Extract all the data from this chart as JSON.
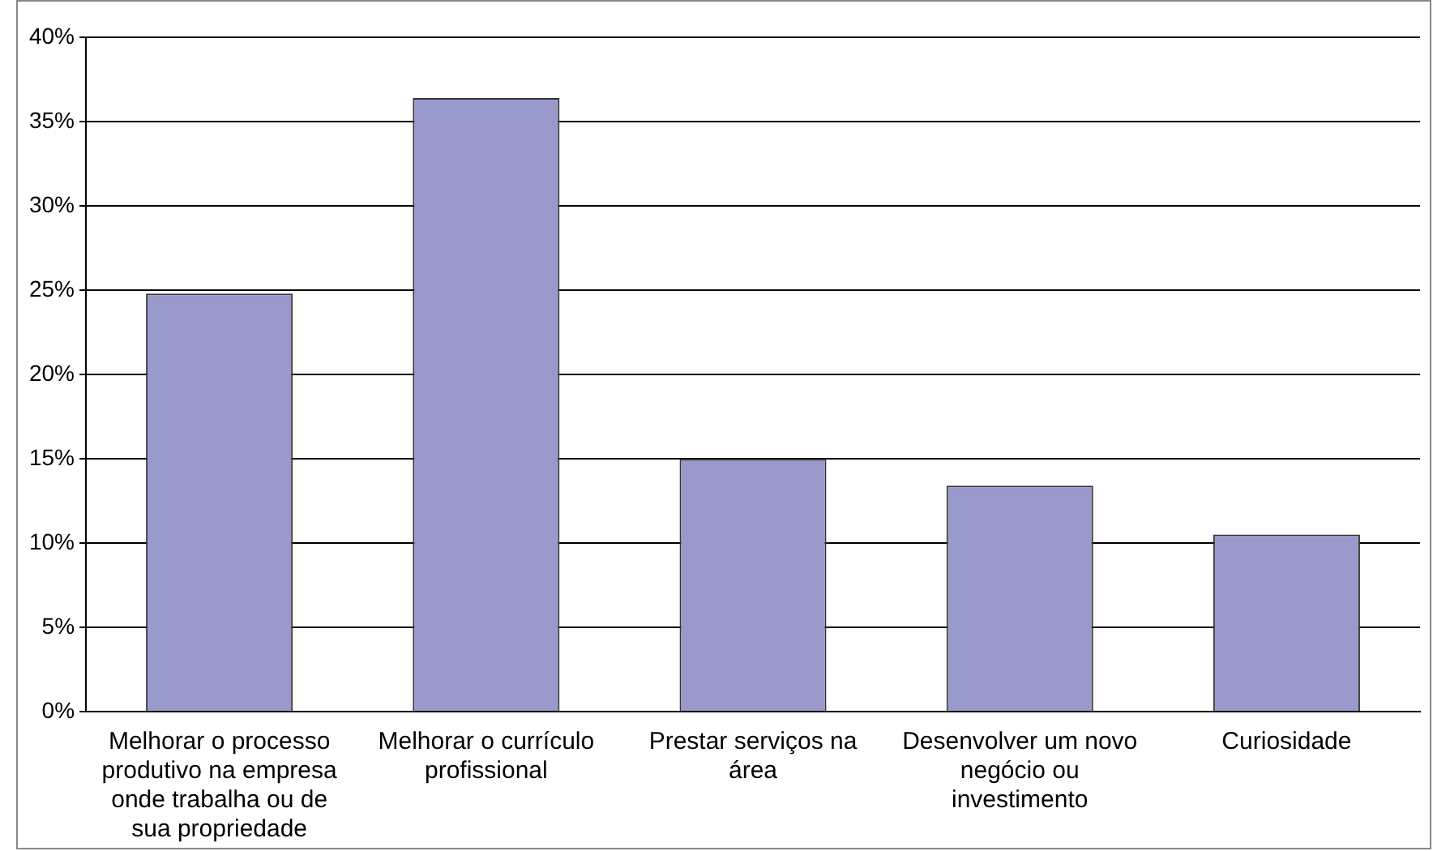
{
  "chart_data": {
    "type": "bar",
    "categories": [
      "Melhorar o processo produtivo na empresa onde trabalha ou de sua propriedade",
      "Melhorar o currículo profissional",
      "Prestar serviços na área",
      "Desenvolver um novo negócio ou investimento",
      "Curiosidade"
    ],
    "values": [
      24.8,
      36.4,
      15.0,
      13.4,
      10.5
    ],
    "color": "#9999cc",
    "ylim": [
      0,
      40
    ],
    "yticks": [
      {
        "value": 0,
        "label": "0%"
      },
      {
        "value": 5,
        "label": "5%"
      },
      {
        "value": 10,
        "label": "10%"
      },
      {
        "value": 15,
        "label": "15%"
      },
      {
        "value": 20,
        "label": "20%"
      },
      {
        "value": 25,
        "label": "25%"
      },
      {
        "value": 30,
        "label": "30%"
      },
      {
        "value": 35,
        "label": "35%"
      },
      {
        "value": 40,
        "label": "40%"
      }
    ],
    "grid": "y",
    "legend": false
  }
}
